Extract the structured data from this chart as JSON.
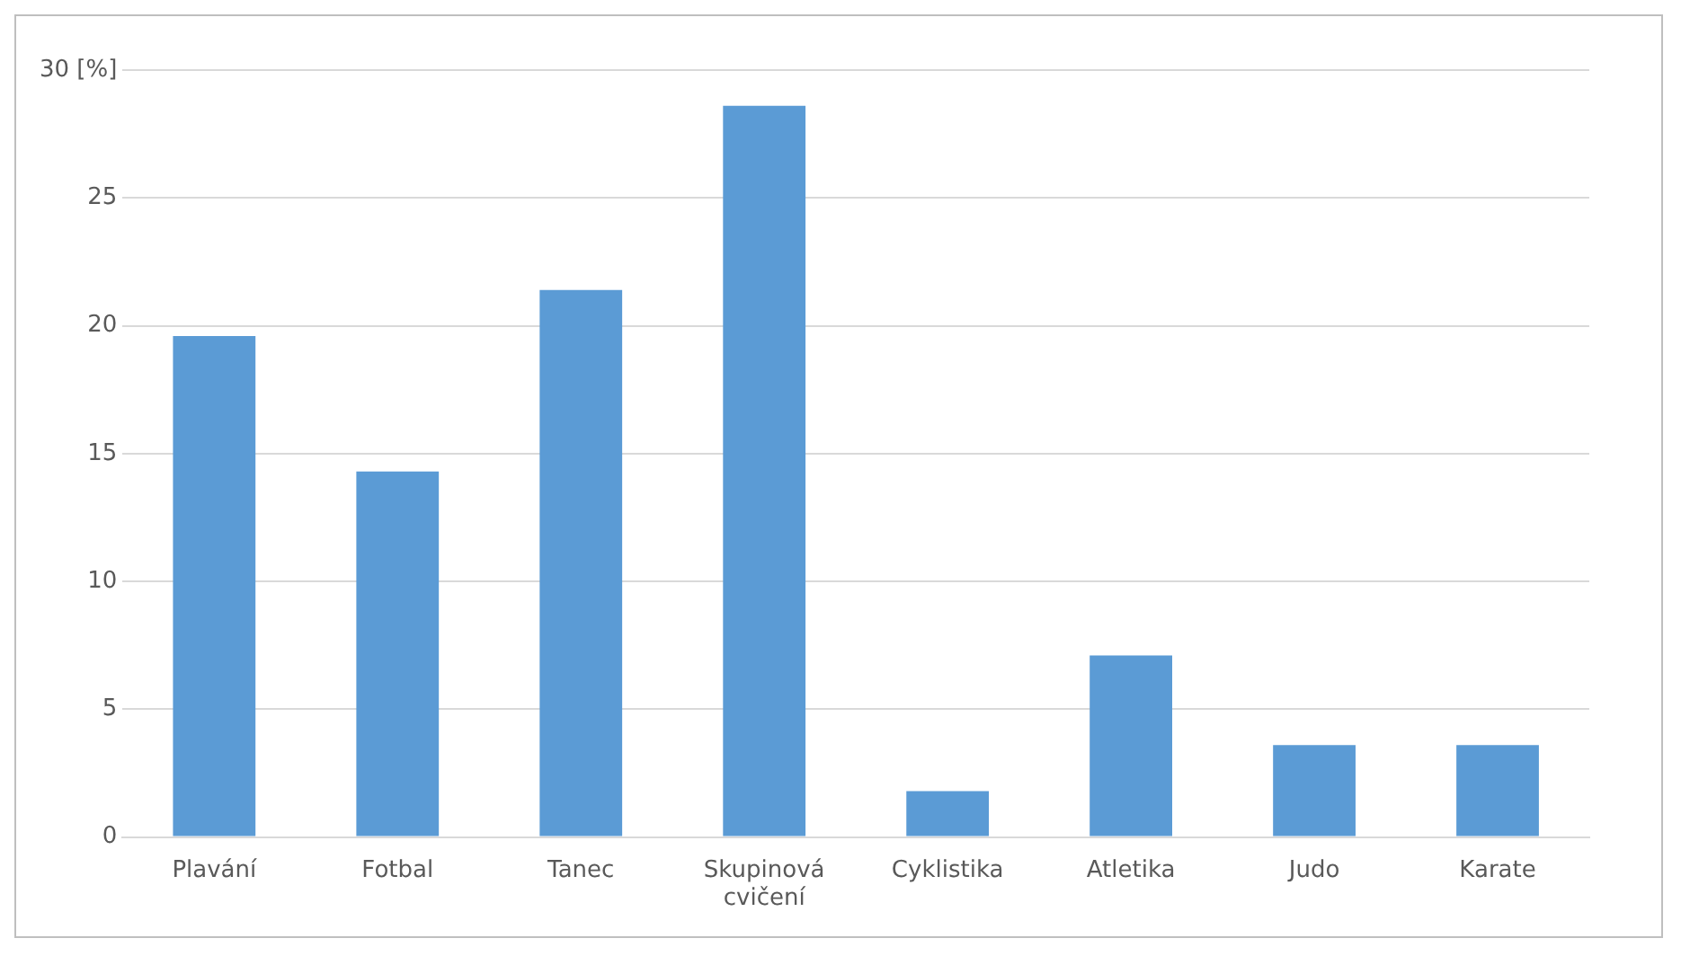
{
  "chart_data": {
    "type": "bar",
    "categories": [
      "Plavání",
      "Fotbal",
      "Tanec",
      "Skupinová cvičení",
      "Cyklistika",
      "Atletika",
      "Judo",
      "Karate"
    ],
    "values": [
      19.6,
      14.3,
      21.4,
      28.6,
      1.8,
      7.1,
      3.6,
      3.6
    ],
    "color": "#5b9bd5",
    "ylim": [
      0,
      30
    ],
    "yticks": [
      0,
      5,
      10,
      15,
      20,
      25,
      {
        "value": 30,
        "label": "30 [%]"
      }
    ],
    "grid": "y",
    "legend": false
  }
}
